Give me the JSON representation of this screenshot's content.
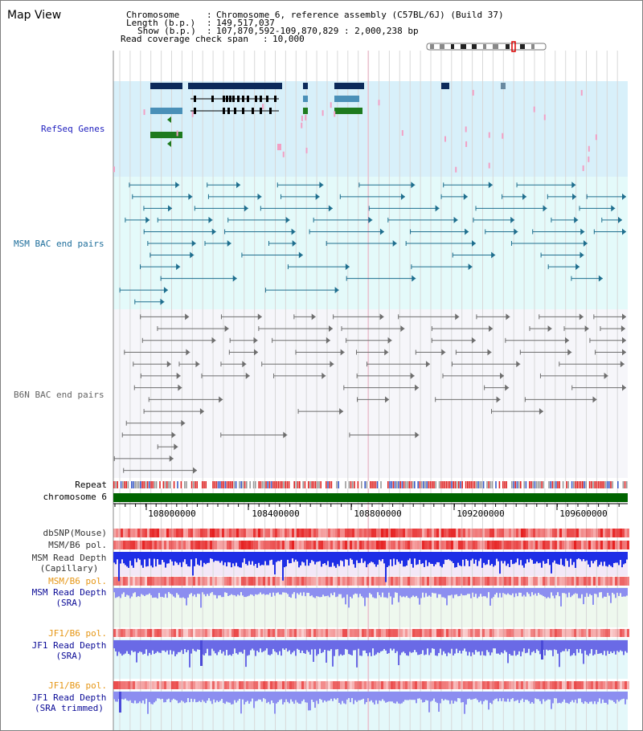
{
  "title": "Map View",
  "header": {
    "chrom_label": "Chromosome",
    "chrom_value": "Chromosome 6, reference assembly (C57BL/6J) (Build 37)",
    "length_label": "Length (b.p.)",
    "length_value": "149,517,037",
    "show_label": "Show (b.p.)",
    "show_value": "107,870,592-109,870,829 : 2,000,238 bp",
    "coverage_label": "Read coverage check span",
    "coverage_value": "10,000"
  },
  "tracks": {
    "refseq": "RefSeq Genes",
    "msm_bac": "MSM BAC end pairs",
    "b6n_bac": "B6N BAC end pairs",
    "repeat": "Repeat",
    "chromosome": "chromosome 6",
    "dbsnp": "dbSNP(Mouse)",
    "msm_b6_pol_1": "MSM/B6 pol.",
    "msm_read_depth_cap_1": "MSM Read Depth",
    "msm_read_depth_cap_2": "(Capillary)",
    "msm_b6_pol_2": "MSM/B6 pol.",
    "msm_read_depth_sra_1": "MSM Read Depth",
    "msm_read_depth_sra_2": "(SRA)",
    "jf1_b6_pol_1": "JF1/B6 pol.",
    "jf1_read_depth_sra_1": "JF1 Read Depth",
    "jf1_read_depth_sra_2": "(SRA)",
    "jf1_b6_pol_2": "JF1/B6 pol.",
    "jf1_read_depth_trim_1": "JF1 Read Depth",
    "jf1_read_depth_trim_2": "(SRA trimmed)"
  },
  "axis": {
    "ticks": [
      "108000000",
      "108400000",
      "108800000",
      "109200000",
      "109600000"
    ]
  },
  "colors": {
    "refseq_label": "#1e1ebe",
    "msm_label": "#1e6e9b",
    "b6n_label": "#646464",
    "orange_label": "#e69614",
    "blue_label": "#0a0a96",
    "refseq_bg": "#d8f0fa",
    "msm_bg": "#e4fafa",
    "b6n_bg": "#f6f6fa",
    "chrom_green": "#006400"
  }
}
